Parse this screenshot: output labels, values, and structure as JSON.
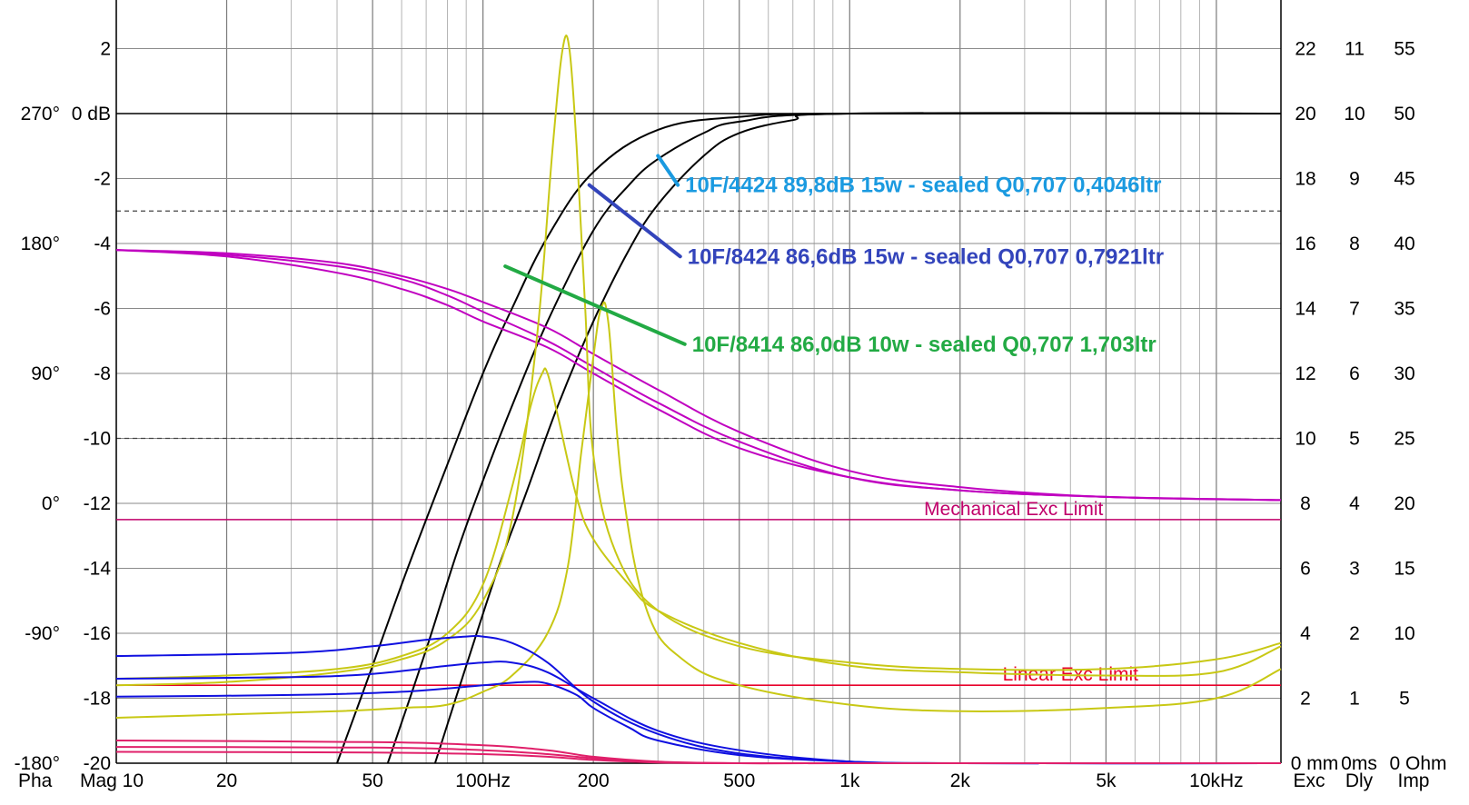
{
  "chart_data": {
    "type": "line",
    "x_scale": "log",
    "x_range_hz": [
      10,
      15000
    ],
    "grid": "on",
    "x_ticks": [
      {
        "value": 10,
        "label": "Mag 10"
      },
      {
        "value": 20,
        "label": "20"
      },
      {
        "value": 50,
        "label": "50"
      },
      {
        "value": 100,
        "label": "100Hz"
      },
      {
        "value": 200,
        "label": "200"
      },
      {
        "value": 500,
        "label": "500"
      },
      {
        "value": 1000,
        "label": "1k"
      },
      {
        "value": 2000,
        "label": "2k"
      },
      {
        "value": 5000,
        "label": "5k"
      },
      {
        "value": 10000,
        "label": "10kHz"
      }
    ],
    "x_axis_corner_left": {
      "text": "Pha",
      "color": "#c000c0"
    },
    "x_axis_corner_right": [
      {
        "text": "Exc",
        "color": "#e0004a"
      },
      {
        "text": "Dly",
        "color": "#1010e0"
      },
      {
        "text": "Imp",
        "color": "#d8d800"
      }
    ],
    "mag_axis": {
      "range_db": [
        -20,
        4
      ],
      "ticks": [
        "2",
        "0 dB",
        "-2",
        "-4",
        "-6",
        "-8",
        "-10",
        "-12",
        "-14",
        "-16",
        "-18",
        "-20"
      ],
      "tick_values": [
        2,
        0,
        -2,
        -4,
        -6,
        -8,
        -10,
        -12,
        -14,
        -16,
        -18,
        -20
      ]
    },
    "phase_axis": {
      "ticks": [
        "270°",
        "180°",
        "90°",
        "0°",
        "-90°",
        "-180°"
      ],
      "tick_values_db": [
        0,
        -4,
        -8,
        -12,
        -16,
        -20
      ]
    },
    "exc_axis": {
      "unit_label": "0 mm",
      "ticks": [
        "22",
        "20",
        "18",
        "16",
        "14",
        "12",
        "10",
        "8",
        "6",
        "4",
        "2"
      ],
      "tick_values_db": [
        2,
        0,
        -2,
        -4,
        -6,
        -8,
        -10,
        -12,
        -14,
        -16,
        -18
      ]
    },
    "dly_axis": {
      "unit_label": "0ms",
      "ticks": [
        "11",
        "10",
        "9",
        "8",
        "7",
        "6",
        "5",
        "4",
        "3",
        "2",
        "1"
      ],
      "tick_values_db": [
        2,
        0,
        -2,
        -4,
        -6,
        -8,
        -10,
        -12,
        -14,
        -16,
        -18
      ]
    },
    "imp_axis": {
      "unit_label": "0 Ohm",
      "ticks": [
        "55",
        "50",
        "45",
        "40",
        "35",
        "30",
        "25",
        "20",
        "15",
        "10",
        "5"
      ],
      "tick_values_db": [
        2,
        0,
        -2,
        -4,
        -6,
        -8,
        -10,
        -12,
        -14,
        -16,
        -18
      ]
    },
    "dashed_gridlines_db": [
      -3,
      -10
    ],
    "limits": [
      {
        "name": "Mechanical Exc Limit",
        "y_db": -12.5,
        "color": "#c0006a",
        "label_at_hz": 2800
      },
      {
        "name": "Linear Exc Limit",
        "y_db": -17.6,
        "color": "#e8002a",
        "label_at_hz": 4000
      }
    ],
    "series": [
      {
        "type": "magnitude",
        "color": "#000000",
        "x_hz": [
          40,
          50,
          60,
          70,
          80,
          100,
          120,
          150,
          200,
          300,
          500,
          1000,
          15000
        ],
        "y_db": [
          -20,
          -17,
          -14.5,
          -12.5,
          -10.8,
          -8,
          -6,
          -3.8,
          -1.8,
          -0.5,
          -0.1,
          0,
          0
        ]
      },
      {
        "type": "magnitude",
        "color": "#000000",
        "x_hz": [
          55,
          70,
          85,
          100,
          120,
          150,
          200,
          250,
          300,
          400,
          500,
          1000,
          15000
        ],
        "y_db": [
          -20,
          -16.5,
          -13.5,
          -11.3,
          -9,
          -6.4,
          -3.6,
          -2.2,
          -1.4,
          -0.6,
          -0.25,
          0,
          0
        ]
      },
      {
        "type": "magnitude",
        "color": "#000000",
        "x_hz": [
          74,
          90,
          110,
          130,
          160,
          200,
          250,
          300,
          400,
          500,
          700,
          1000,
          15000
        ],
        "y_db": [
          -20,
          -17,
          -14,
          -11.8,
          -9,
          -6.4,
          -4.2,
          -2.8,
          -1.3,
          -0.6,
          -0.2,
          0,
          0
        ]
      },
      {
        "type": "phase",
        "color": "#c000c0",
        "x_hz": [
          10,
          20,
          40,
          60,
          80,
          100,
          150,
          200,
          300,
          500,
          1000,
          2000,
          5000,
          15000
        ],
        "y_db": [
          -4.2,
          -4.4,
          -4.9,
          -5.4,
          -5.9,
          -6.4,
          -7.2,
          -8,
          -9.1,
          -10.3,
          -11.2,
          -11.6,
          -11.8,
          -11.9
        ]
      },
      {
        "type": "phase",
        "color": "#c000c0",
        "x_hz": [
          10,
          20,
          40,
          60,
          80,
          100,
          150,
          200,
          300,
          500,
          1000,
          2000,
          5000,
          15000
        ],
        "y_db": [
          -4.2,
          -4.35,
          -4.7,
          -5.1,
          -5.6,
          -6.1,
          -7,
          -7.8,
          -8.9,
          -10.1,
          -11.2,
          -11.6,
          -11.8,
          -11.9
        ]
      },
      {
        "type": "phase",
        "color": "#c000c0",
        "x_hz": [
          10,
          20,
          40,
          60,
          80,
          100,
          150,
          200,
          300,
          500,
          1000,
          2000,
          5000,
          15000
        ],
        "y_db": [
          -4.2,
          -4.3,
          -4.6,
          -5,
          -5.4,
          -5.8,
          -6.6,
          -7.4,
          -8.5,
          -9.8,
          -11,
          -11.5,
          -11.8,
          -11.9
        ]
      },
      {
        "type": "impedance",
        "color": "#c8c814",
        "x_hz": [
          10,
          20,
          40,
          60,
          80,
          100,
          120,
          140,
          155,
          165,
          172,
          180,
          190,
          200,
          230,
          300,
          500,
          1000,
          2000,
          5000,
          10000,
          15000
        ],
        "y_db": [
          -17.6,
          -17.5,
          -17.2,
          -16.8,
          -16.2,
          -15,
          -12.5,
          -7,
          -1,
          2,
          2,
          -1,
          -6,
          -10.5,
          -13.5,
          -15.3,
          -16.4,
          -16.9,
          -17.1,
          -17.1,
          -16.8,
          -16.3
        ]
      },
      {
        "type": "impedance",
        "color": "#c8c814",
        "x_hz": [
          10,
          20,
          40,
          60,
          80,
          100,
          120,
          135,
          145,
          150,
          160,
          180,
          200,
          250,
          300,
          500,
          1000,
          2000,
          5000,
          10000,
          15000
        ],
        "y_db": [
          -17.4,
          -17.3,
          -17.1,
          -16.7,
          -16,
          -14.5,
          -11.5,
          -9,
          -8,
          -8,
          -9.3,
          -11.8,
          -13.1,
          -14.5,
          -15.3,
          -16.3,
          -17,
          -17.2,
          -17.3,
          -17.2,
          -16.4
        ]
      },
      {
        "type": "impedance",
        "color": "#c8c814",
        "x_hz": [
          10,
          20,
          40,
          60,
          80,
          100,
          120,
          150,
          170,
          185,
          200,
          210,
          220,
          240,
          280,
          350,
          500,
          1000,
          2000,
          5000,
          10000,
          15000
        ],
        "y_db": [
          -18.6,
          -18.5,
          -18.4,
          -18.3,
          -18.2,
          -17.8,
          -17.3,
          -16,
          -14,
          -10.5,
          -7.5,
          -6,
          -6.5,
          -11.5,
          -15.3,
          -16.8,
          -17.6,
          -18.2,
          -18.4,
          -18.3,
          -18,
          -17.1
        ]
      },
      {
        "type": "delay",
        "color": "#1010e0",
        "x_hz": [
          10,
          30,
          50,
          70,
          90,
          100,
          120,
          150,
          200,
          300,
          500,
          1000,
          2000,
          15000
        ],
        "y_db": [
          -16.7,
          -16.6,
          -16.4,
          -16.2,
          -16.1,
          -16.1,
          -16.3,
          -16.9,
          -18.1,
          -19.1,
          -19.7,
          -19.95,
          -20,
          -20
        ]
      },
      {
        "type": "delay",
        "color": "#1010e0",
        "x_hz": [
          10,
          30,
          50,
          80,
          100,
          120,
          150,
          200,
          300,
          500,
          1000,
          2000,
          15000
        ],
        "y_db": [
          -17.4,
          -17.35,
          -17.25,
          -17,
          -16.9,
          -16.9,
          -17.2,
          -18,
          -19,
          -19.6,
          -19.95,
          -20,
          -20
        ]
      },
      {
        "type": "delay",
        "color": "#1010e0",
        "x_hz": [
          10,
          30,
          60,
          100,
          130,
          150,
          180,
          200,
          250,
          300,
          500,
          1000,
          2000,
          15000
        ],
        "y_db": [
          -17.95,
          -17.9,
          -17.8,
          -17.6,
          -17.5,
          -17.55,
          -17.9,
          -18.3,
          -18.9,
          -19.3,
          -19.75,
          -19.95,
          -20,
          -20
        ]
      },
      {
        "type": "excursion",
        "color": "#e0206a",
        "x_hz": [
          10,
          50,
          100,
          150,
          200,
          300,
          500,
          1000,
          15000
        ],
        "y_db": [
          -19.3,
          -19.35,
          -19.45,
          -19.6,
          -19.8,
          -19.95,
          -20,
          -20,
          -20
        ]
      },
      {
        "type": "excursion",
        "color": "#e0206a",
        "x_hz": [
          10,
          50,
          100,
          150,
          200,
          300,
          500,
          1000,
          15000
        ],
        "y_db": [
          -19.5,
          -19.52,
          -19.6,
          -19.72,
          -19.85,
          -19.97,
          -20,
          -20,
          -20
        ]
      },
      {
        "type": "excursion",
        "color": "#e0206a",
        "x_hz": [
          10,
          50,
          100,
          150,
          200,
          300,
          500,
          1000,
          15000
        ],
        "y_db": [
          -19.65,
          -19.67,
          -19.72,
          -19.8,
          -19.9,
          -19.98,
          -20,
          -20,
          -20
        ]
      }
    ],
    "annotations": [
      {
        "text": "10F/4424 89,8dB 15w - sealed Q0,707 0,4046ltr",
        "color": "#1a9ae0",
        "pointer": {
          "from": [
            300,
            -1.3
          ],
          "to": [
            340,
            -2.2
          ]
        }
      },
      {
        "text": "10F/8424 86,6dB 15w - sealed Q0,707 0,7921ltr",
        "color": "#3344bb",
        "pointer": {
          "from": [
            195,
            -2.2
          ],
          "to": [
            345,
            -4.4
          ]
        }
      },
      {
        "text": "10F/8414 86,0dB 10w - sealed Q0,707 1,703ltr",
        "color": "#22aa44",
        "pointer": {
          "from": [
            115,
            -4.7
          ],
          "to": [
            355,
            -7.1
          ]
        }
      }
    ]
  }
}
